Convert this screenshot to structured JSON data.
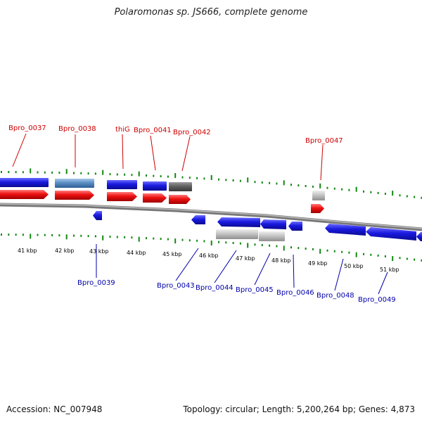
{
  "title": "Polaromonas sp. JS666, complete genome",
  "footer": {
    "accession": "Accession: NC_007948",
    "summary": "Topology: circular; Length: 5,200,264 bp; Genes: 4,873"
  },
  "colors": {
    "forward_cds": "#ee1111",
    "forward_gene": "#1a1ae0",
    "reverse_gene": "#1a1ae0",
    "highlight_gene": "#5b8fc4",
    "dark_feature": "#606060",
    "light_feature": "#c4c4c4",
    "label_top": "#cc0000",
    "label_bottom": "#0000aa",
    "tick": "#118811",
    "axis_label": "#000000"
  },
  "kbp_labels": [
    "41 kbp",
    "42 kbp",
    "43 kbp",
    "44 kbp",
    "45 kbp",
    "46 kbp",
    "47 kbp",
    "48 kbp",
    "49 kbp",
    "50 kbp",
    "51 kbp"
  ],
  "top_labels": [
    "Bpro_0037",
    "Bpro_0038",
    "thiG",
    "Bpro_0041",
    "Bpro_0042",
    "Bpro_0047"
  ],
  "bottom_labels": [
    "Bpro_0039",
    "Bpro_0043",
    "Bpro_0044",
    "Bpro_0045",
    "Bpro_0046",
    "Bpro_0048",
    "Bpro_0049"
  ]
}
